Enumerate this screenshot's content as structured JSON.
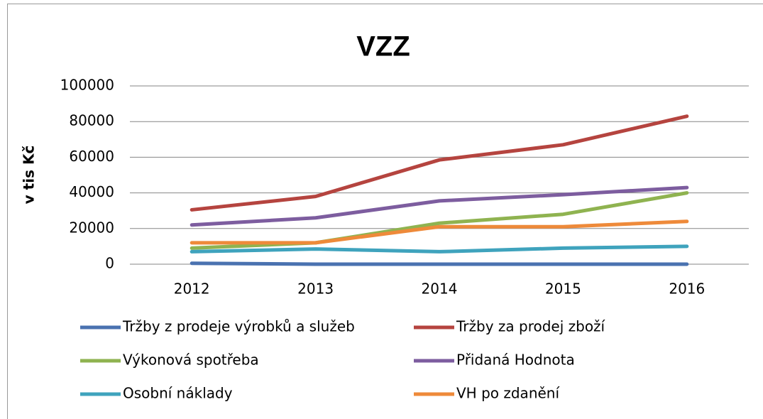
{
  "chart_data": {
    "type": "line",
    "title": "VZZ",
    "y_label": "v tis Kč",
    "categories": [
      "2012",
      "2013",
      "2014",
      "2015",
      "2016"
    ],
    "series": [
      {
        "name": "Tržby z prodeje výrobků a služeb",
        "color": "#4a72b0",
        "values": [
          500,
          0,
          0,
          0,
          0
        ]
      },
      {
        "name": "Tržby za prodej zboží",
        "color": "#b5443f",
        "values": [
          30500,
          38000,
          58500,
          67000,
          83000
        ]
      },
      {
        "name": "Výkonová spotřeba",
        "color": "#8fb350",
        "values": [
          9000,
          12000,
          23000,
          28000,
          40000
        ]
      },
      {
        "name": "Přidaná Hodnota",
        "color": "#7d5d9f",
        "values": [
          22000,
          26000,
          35500,
          39000,
          43000
        ]
      },
      {
        "name": "Osobní náklady",
        "color": "#3fa3bd",
        "values": [
          7000,
          8500,
          7000,
          9000,
          10000
        ]
      },
      {
        "name": "VH po zdanění",
        "color": "#ee8a3a",
        "values": [
          12000,
          12000,
          21000,
          21000,
          24000
        ]
      }
    ],
    "ylim": [
      0,
      100000
    ],
    "yticks": [
      0,
      20000,
      40000,
      60000,
      80000,
      100000
    ],
    "grid": true,
    "legend": "bottom"
  }
}
